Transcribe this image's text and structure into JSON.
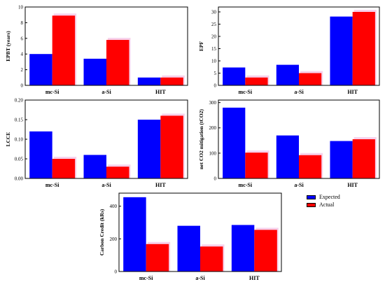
{
  "legend": {
    "entries": [
      {
        "label": "Expected",
        "color": "#0000ff"
      },
      {
        "label": "Actual",
        "color": "#ff0000"
      }
    ]
  },
  "chart_data": [
    {
      "type": "bar",
      "title": "",
      "xlabel": "",
      "ylabel": "EPBT (years)",
      "categories": [
        "mc-Si",
        "a-Si",
        "HIT"
      ],
      "ylim": [
        0,
        10
      ],
      "yticks": [
        "0",
        "2",
        "4",
        "6",
        "8",
        "10"
      ],
      "series": [
        {
          "name": "Expected",
          "color": "#0000ff",
          "values": [
            4.0,
            3.4,
            1.0
          ]
        },
        {
          "name": "Actual",
          "color": "#ff0000",
          "values": [
            8.9,
            5.8,
            1.0
          ]
        }
      ]
    },
    {
      "type": "bar",
      "title": "",
      "xlabel": "",
      "ylabel": "EPF",
      "categories": [
        "mc-Si",
        "a-Si",
        "HIT"
      ],
      "ylim": [
        0,
        32
      ],
      "yticks": [
        "0",
        "5",
        "10",
        "15",
        "20",
        "25",
        "30"
      ],
      "series": [
        {
          "name": "Expected",
          "color": "#0000ff",
          "values": [
            7.3,
            8.4,
            28.1
          ]
        },
        {
          "name": "Actual",
          "color": "#ff0000",
          "values": [
            3.2,
            5.0,
            30.0
          ]
        }
      ]
    },
    {
      "type": "bar",
      "title": "",
      "xlabel": "",
      "ylabel": "LCCE",
      "categories": [
        "mc-Si",
        "a-Si",
        "HIT"
      ],
      "ylim": [
        0,
        0.2
      ],
      "yticks": [
        "0.00",
        "0.05",
        "0.10",
        "0.15",
        "0.20"
      ],
      "series": [
        {
          "name": "Expected",
          "color": "#0000ff",
          "values": [
            0.12,
            0.06,
            0.15
          ]
        },
        {
          "name": "Actual",
          "color": "#ff0000",
          "values": [
            0.05,
            0.03,
            0.16
          ]
        }
      ]
    },
    {
      "type": "bar",
      "title": "",
      "xlabel": "",
      "ylabel": "net CO2 mitigation (tCO2)",
      "categories": [
        "mc-Si",
        "a-Si",
        "HIT"
      ],
      "ylim": [
        0,
        310
      ],
      "yticks": [
        "0",
        "100",
        "200",
        "300"
      ],
      "series": [
        {
          "name": "Expected",
          "color": "#0000ff",
          "values": [
            280,
            170,
            148
          ]
        },
        {
          "name": "Actual",
          "color": "#ff0000",
          "values": [
            102,
            92,
            155
          ]
        }
      ]
    },
    {
      "type": "bar",
      "title": "",
      "xlabel": "",
      "ylabel": "Carbon Credit (kRs)",
      "categories": [
        "mc-Si",
        "a-Si",
        "HIT"
      ],
      "ylim": [
        0,
        480
      ],
      "yticks": [
        "0",
        "200",
        "400"
      ],
      "series": [
        {
          "name": "Expected",
          "color": "#0000ff",
          "values": [
            455,
            280,
            285
          ]
        },
        {
          "name": "Actual",
          "color": "#ff0000",
          "values": [
            168,
            153,
            255
          ]
        }
      ]
    }
  ]
}
